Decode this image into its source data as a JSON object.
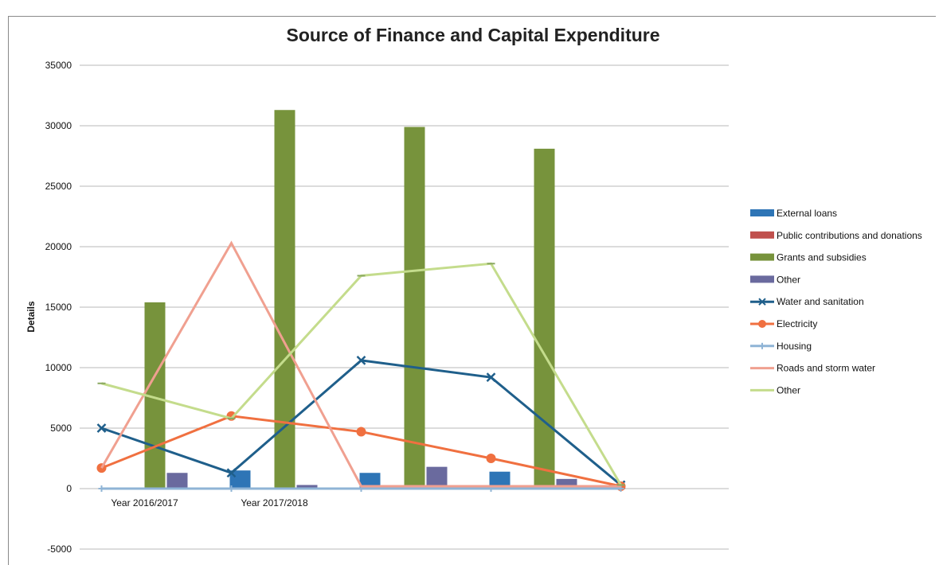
{
  "chart_data": {
    "type": "bar",
    "title": "Source of Finance and Capital Expenditure",
    "ylabel": "Details",
    "xlabel": "",
    "ylim": [
      -5000,
      35000
    ],
    "yticks": [
      "-5000",
      "0",
      "5000",
      "10000",
      "15000",
      "20000",
      "25000",
      "30000",
      "35000"
    ],
    "categories": [
      "Year 2016/2017",
      "Year 2017/2018",
      "",
      "",
      ""
    ],
    "grid": "horizontal",
    "legend_position": "right",
    "bar_series": [
      {
        "name": "External loans",
        "color": "#2e75b6",
        "values": [
          0,
          1500,
          1300,
          1400,
          0
        ]
      },
      {
        "name": "Public contributions and donations",
        "color": "#c0504d",
        "values": [
          0,
          0,
          0,
          0,
          0
        ]
      },
      {
        "name": "Grants and subsidies",
        "color": "#77933c",
        "values": [
          15400,
          31300,
          29900,
          28100,
          0
        ]
      },
      {
        "name": "Other",
        "color": "#6a6a9e",
        "values": [
          1300,
          300,
          1800,
          800,
          0
        ]
      }
    ],
    "line_series": [
      {
        "name": "Water and sanitation",
        "color": "#1f5f8b",
        "marker": "x",
        "values": [
          5000,
          1300,
          10600,
          9200,
          300
        ]
      },
      {
        "name": "Electricity",
        "color": "#f07040",
        "marker": "circle",
        "values": [
          1700,
          6000,
          4700,
          2500,
          200
        ]
      },
      {
        "name": "Housing",
        "color": "#8fb4d6",
        "marker": "plus",
        "values": [
          0,
          0,
          0,
          0,
          0
        ]
      },
      {
        "name": "Roads and storm water",
        "color": "#f0a090",
        "marker": "none",
        "values": [
          1700,
          20300,
          200,
          200,
          200
        ]
      },
      {
        "name": "Other",
        "color": "#c4dc8c",
        "marker": "dash",
        "values": [
          8700,
          5800,
          17600,
          18600,
          300
        ]
      }
    ]
  }
}
